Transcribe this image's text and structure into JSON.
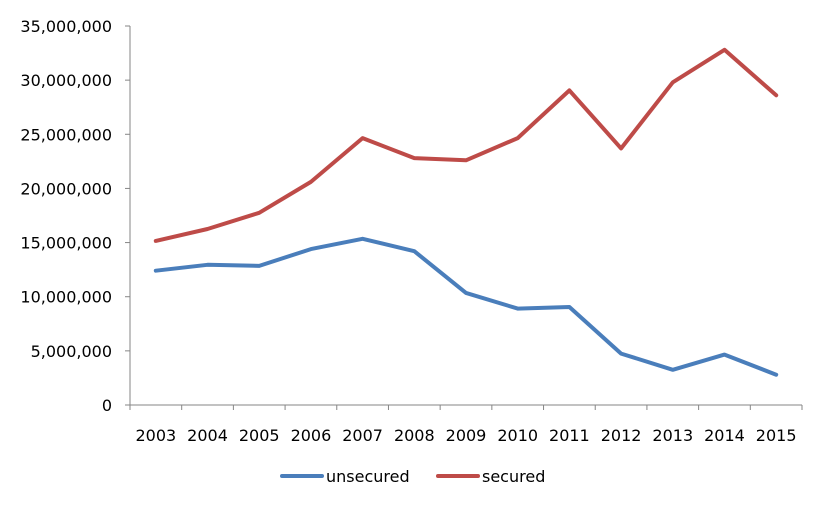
{
  "chart_data": {
    "type": "line",
    "title": "",
    "xlabel": "",
    "ylabel": "",
    "categories": [
      "2003",
      "2004",
      "2005",
      "2006",
      "2007",
      "2008",
      "2009",
      "2010",
      "2011",
      "2012",
      "2013",
      "2014",
      "2015"
    ],
    "ylim": [
      0,
      35000000
    ],
    "yticks": [
      {
        "value": 0,
        "label": "0"
      },
      {
        "value": 5000000,
        "label": "5,000,000"
      },
      {
        "value": 10000000,
        "label": "10,000,000"
      },
      {
        "value": 15000000,
        "label": "15,000,000"
      },
      {
        "value": 20000000,
        "label": "20,000,000"
      },
      {
        "value": 25000000,
        "label": "25,000,000"
      },
      {
        "value": 30000000,
        "label": "30,000,000"
      },
      {
        "value": 35000000,
        "label": "35,000,000"
      }
    ],
    "grid": false,
    "legend_position": "bottom",
    "series": [
      {
        "name": "unsecured",
        "color": "#4a7ebb",
        "values": [
          12400000,
          12950000,
          12850000,
          14400000,
          15350000,
          14200000,
          10350000,
          8900000,
          9050000,
          4750000,
          3250000,
          4650000,
          2800000
        ]
      },
      {
        "name": "secured",
        "color": "#be4b48",
        "values": [
          15150000,
          16250000,
          17750000,
          20600000,
          24650000,
          22800000,
          22600000,
          24650000,
          29050000,
          23700000,
          29800000,
          32800000,
          28600000
        ]
      }
    ]
  }
}
